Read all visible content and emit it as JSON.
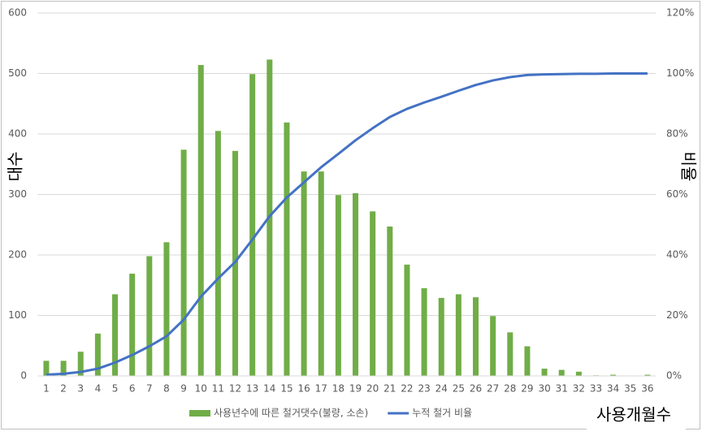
{
  "chart_data": {
    "type": "bar-line",
    "y_label": "대수",
    "y2_label": "비율",
    "x_label": "사용개월수",
    "categories": [
      "1",
      "2",
      "3",
      "4",
      "5",
      "6",
      "7",
      "8",
      "9",
      "10",
      "11",
      "12",
      "13",
      "14",
      "15",
      "16",
      "17",
      "18",
      "19",
      "20",
      "21",
      "22",
      "23",
      "24",
      "25",
      "26",
      "27",
      "28",
      "29",
      "30",
      "31",
      "32",
      "33",
      "34",
      "35",
      "36"
    ],
    "series": [
      {
        "name": "사용년수에 따른 철거댓수(불량, 소손)",
        "type": "bar",
        "color": "#70ad47",
        "values": [
          25,
          25,
          40,
          70,
          135,
          169,
          198,
          221,
          374,
          514,
          405,
          372,
          499,
          523,
          419,
          338,
          338,
          299,
          302,
          272,
          247,
          184,
          145,
          129,
          135,
          130,
          99,
          72,
          49,
          12,
          10,
          7,
          1,
          2,
          0,
          2
        ]
      },
      {
        "name": "누적 철거 비율",
        "type": "line",
        "axis": "y2",
        "color": "#4472c4",
        "values": [
          0.4,
          0.7,
          1.3,
          2.4,
          4.4,
          6.9,
          9.8,
          13.1,
          18.6,
          26.2,
          32.2,
          37.7,
          45.1,
          52.8,
          59.0,
          64.0,
          69.0,
          73.4,
          77.9,
          81.9,
          85.6,
          88.3,
          90.4,
          92.3,
          94.3,
          96.2,
          97.7,
          98.8,
          99.5,
          99.7,
          99.8,
          99.9,
          99.9,
          100,
          100,
          100
        ]
      }
    ],
    "ylim": [
      0,
      600
    ],
    "yticks": [
      0,
      100,
      200,
      300,
      400,
      500,
      600
    ],
    "y2lim": [
      0,
      120
    ],
    "y2ticks": [
      {
        "value": 0,
        "label": "0%"
      },
      {
        "value": 20,
        "label": "20%"
      },
      {
        "value": 40,
        "label": "40%"
      },
      {
        "value": 60,
        "label": "60%"
      },
      {
        "value": 80,
        "label": "80%"
      },
      {
        "value": 100,
        "label": "100%"
      },
      {
        "value": 120,
        "label": "120%"
      }
    ],
    "grid": true
  }
}
